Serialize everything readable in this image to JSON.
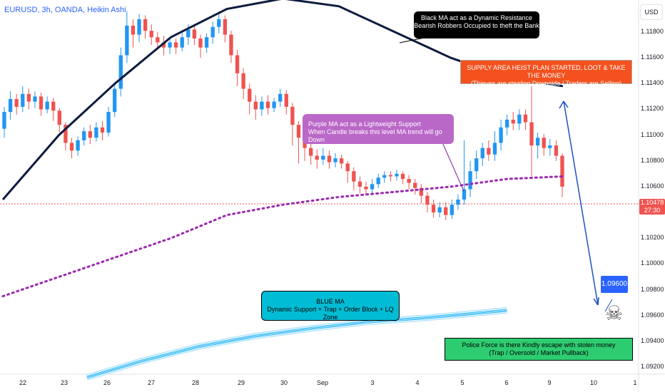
{
  "header": {
    "symbol": "EURUSD, 3h, OANDA, Heikin Ashi"
  },
  "currency_button": "USD",
  "current_price": {
    "value": "1.10478",
    "countdown": "27:30"
  },
  "annotations": {
    "black_ma": {
      "line1": "Black MA act as a Dynamic Resistance",
      "line2": "Bearish Robbers Occupied to theft the Bank"
    },
    "supply": {
      "line1": "SUPPLY AREA HEIST PLAN STARTED, LOOT & TAKE THE MONEY",
      "line2": "(Thieves are stealing Downside / Traders are Selling)"
    },
    "purple_ma": {
      "line1": "Purple MA act as a Lightweight Support",
      "line2": "When Candle breaks this level MA trend will go Down"
    },
    "blue_ma": {
      "line1": "BLUE MA",
      "line2": "Dynamic Support + Trap + Order Block + LQ Zone"
    },
    "police": {
      "line1": "Police Force is there Kindly escape with stolen money",
      "line2": "(Trap / Oversold / Market Pullback)"
    },
    "target": "1.09600"
  },
  "colors": {
    "bull": "#2196f3",
    "bear": "#ef5350",
    "black_ma": "#0d1b3e",
    "purple_ma": "#9c27b0",
    "blue_ma": "#29b6f6",
    "arrow": "#1e4fc2"
  },
  "chart_data": {
    "type": "candlestick",
    "y_axis_ticks": [
      "1.11800",
      "1.11600",
      "1.11400",
      "1.11200",
      "1.11000",
      "1.10800",
      "1.10600",
      "1.10400",
      "1.10200",
      "1.10000",
      "1.09800",
      "1.09600",
      "1.09400",
      "1.09200"
    ],
    "x_axis_ticks": [
      "22",
      "23",
      "26",
      "27",
      "28",
      "29",
      "30",
      "Sep",
      "3",
      "4",
      "5",
      "6",
      "9",
      "10",
      "1"
    ],
    "ylim": [
      1.0915,
      1.1205
    ],
    "x_range": [
      22.0,
      1.0
    ],
    "candles": [
      [
        1.1105,
        1.1118,
        1.1098,
        1.1122
      ],
      [
        1.1118,
        1.1128,
        1.1112,
        1.1134
      ],
      [
        1.1128,
        1.1122,
        1.1116,
        1.1132
      ],
      [
        1.1122,
        1.1132,
        1.1118,
        1.1138
      ],
      [
        1.1132,
        1.1126,
        1.112,
        1.1136
      ],
      [
        1.1126,
        1.113,
        1.1121,
        1.1134
      ],
      [
        1.113,
        1.112,
        1.1115,
        1.1133
      ],
      [
        1.112,
        1.1126,
        1.1117,
        1.113
      ],
      [
        1.1126,
        1.1119,
        1.1111,
        1.1129
      ],
      [
        1.1119,
        1.1108,
        1.1102,
        1.1121
      ],
      [
        1.1108,
        1.1094,
        1.1088,
        1.111
      ],
      [
        1.1094,
        1.1088,
        1.1082,
        1.1098
      ],
      [
        1.1088,
        1.1096,
        1.1084,
        1.1099
      ],
      [
        1.1096,
        1.1103,
        1.1092,
        1.1106
      ],
      [
        1.1103,
        1.1098,
        1.1093,
        1.1108
      ],
      [
        1.1098,
        1.1106,
        1.1095,
        1.111
      ],
      [
        1.1106,
        1.1102,
        1.1096,
        1.1111
      ],
      [
        1.1102,
        1.1118,
        1.1099,
        1.1122
      ],
      [
        1.1118,
        1.1136,
        1.1114,
        1.114
      ],
      [
        1.1136,
        1.1162,
        1.113,
        1.1168
      ],
      [
        1.1162,
        1.1185,
        1.1156,
        1.1196
      ],
      [
        1.1185,
        1.1178,
        1.1168,
        1.119
      ],
      [
        1.1178,
        1.119,
        1.1172,
        1.1194
      ],
      [
        1.119,
        1.1181,
        1.1175,
        1.1193
      ],
      [
        1.1181,
        1.1176,
        1.117,
        1.1186
      ],
      [
        1.1176,
        1.1172,
        1.1166,
        1.118
      ],
      [
        1.1172,
        1.1168,
        1.1162,
        1.1177
      ],
      [
        1.1168,
        1.1172,
        1.1163,
        1.1176
      ],
      [
        1.1172,
        1.1168,
        1.1163,
        1.1175
      ],
      [
        1.1168,
        1.1176,
        1.1165,
        1.118
      ],
      [
        1.1176,
        1.1182,
        1.117,
        1.1186
      ],
      [
        1.1182,
        1.1175,
        1.117,
        1.1186
      ],
      [
        1.1175,
        1.1168,
        1.116,
        1.1178
      ],
      [
        1.1168,
        1.1176,
        1.1164,
        1.1179
      ],
      [
        1.1176,
        1.1184,
        1.1171,
        1.1188
      ],
      [
        1.1184,
        1.119,
        1.1179,
        1.1196
      ],
      [
        1.119,
        1.1178,
        1.1172,
        1.1193
      ],
      [
        1.1178,
        1.1162,
        1.1156,
        1.1181
      ],
      [
        1.1162,
        1.1148,
        1.1138,
        1.1166
      ],
      [
        1.1148,
        1.1136,
        1.1128,
        1.1152
      ],
      [
        1.1136,
        1.1126,
        1.1116,
        1.114
      ],
      [
        1.1126,
        1.112,
        1.1112,
        1.1131
      ],
      [
        1.112,
        1.1126,
        1.1115,
        1.113
      ],
      [
        1.1126,
        1.1121,
        1.1116,
        1.1131
      ],
      [
        1.1121,
        1.1126,
        1.1118,
        1.1129
      ],
      [
        1.1126,
        1.1132,
        1.1122,
        1.1136
      ],
      [
        1.1132,
        1.1122,
        1.1116,
        1.1135
      ],
      [
        1.1122,
        1.1108,
        1.1092,
        1.1125
      ],
      [
        1.1108,
        1.1098,
        1.1078,
        1.1111
      ],
      [
        1.1098,
        1.109,
        1.108,
        1.1102
      ],
      [
        1.109,
        1.1084,
        1.1077,
        1.1094
      ],
      [
        1.1084,
        1.1081,
        1.1074,
        1.1089
      ],
      [
        1.1081,
        1.1084,
        1.1077,
        1.109
      ],
      [
        1.1084,
        1.1079,
        1.1074,
        1.1088
      ],
      [
        1.1079,
        1.1082,
        1.1075,
        1.1086
      ],
      [
        1.1082,
        1.1078,
        1.1074,
        1.1085
      ],
      [
        1.1078,
        1.1072,
        1.1063,
        1.108
      ],
      [
        1.1072,
        1.1064,
        1.1057,
        1.1075
      ],
      [
        1.1064,
        1.106,
        1.1055,
        1.1068
      ],
      [
        1.106,
        1.1058,
        1.1054,
        1.1064
      ],
      [
        1.1058,
        1.1062,
        1.1055,
        1.1066
      ],
      [
        1.1062,
        1.1067,
        1.1059,
        1.107
      ],
      [
        1.1067,
        1.1069,
        1.1063,
        1.1072
      ],
      [
        1.1069,
        1.1068,
        1.1064,
        1.1072
      ],
      [
        1.1068,
        1.107,
        1.1065,
        1.1073
      ],
      [
        1.107,
        1.1066,
        1.1062,
        1.1072
      ],
      [
        1.1066,
        1.1063,
        1.1058,
        1.1069
      ],
      [
        1.1063,
        1.1059,
        1.1054,
        1.1066
      ],
      [
        1.1059,
        1.1053,
        1.1047,
        1.1062
      ],
      [
        1.1053,
        1.1046,
        1.104,
        1.1056
      ],
      [
        1.1046,
        1.104,
        1.1036,
        1.105
      ],
      [
        1.104,
        1.1044,
        1.1036,
        1.1048
      ],
      [
        1.1044,
        1.1038,
        1.1034,
        1.1048
      ],
      [
        1.1038,
        1.1046,
        1.1035,
        1.105
      ],
      [
        1.1046,
        1.105,
        1.1042,
        1.1054
      ],
      [
        1.105,
        1.1058,
        1.1046,
        1.1096
      ],
      [
        1.1058,
        1.1072,
        1.1052,
        1.108
      ],
      [
        1.1072,
        1.1082,
        1.1066,
        1.1088
      ],
      [
        1.1082,
        1.109,
        1.1076,
        1.1094
      ],
      [
        1.109,
        1.1085,
        1.108,
        1.1096
      ],
      [
        1.1085,
        1.1094,
        1.108,
        1.1103
      ],
      [
        1.1094,
        1.1106,
        1.1088,
        1.1112
      ],
      [
        1.1106,
        1.1112,
        1.11,
        1.1116
      ],
      [
        1.1112,
        1.1109,
        1.1104,
        1.1118
      ],
      [
        1.1109,
        1.1116,
        1.1104,
        1.112
      ],
      [
        1.1116,
        1.111,
        1.1104,
        1.112
      ],
      [
        1.111,
        1.1092,
        1.1068,
        1.1138
      ],
      [
        1.1092,
        1.1098,
        1.1082,
        1.1102
      ],
      [
        1.1098,
        1.109,
        1.1084,
        1.1101
      ],
      [
        1.109,
        1.1092,
        1.1084,
        1.1097
      ],
      [
        1.1092,
        1.1084,
        1.108,
        1.1096
      ],
      [
        1.1084,
        1.106,
        1.1052,
        1.1086
      ]
    ],
    "series": [
      {
        "name": "Black MA",
        "points": [
          [
            0,
            1.105
          ],
          [
            0.1,
            1.11
          ],
          [
            0.2,
            1.114
          ],
          [
            0.3,
            1.1176
          ],
          [
            0.4,
            1.1198
          ],
          [
            0.5,
            1.1206
          ],
          [
            0.6,
            1.12
          ],
          [
            0.7,
            1.118
          ],
          [
            0.8,
            1.116
          ],
          [
            0.9,
            1.1145
          ],
          [
            1.0,
            1.1138
          ]
        ]
      },
      {
        "name": "Purple MA",
        "points": [
          [
            0,
            1.0975
          ],
          [
            0.1,
            1.099
          ],
          [
            0.2,
            1.1005
          ],
          [
            0.3,
            1.102
          ],
          [
            0.4,
            1.1038
          ],
          [
            0.5,
            1.1046
          ],
          [
            0.6,
            1.1052
          ],
          [
            0.7,
            1.1056
          ],
          [
            0.8,
            1.106
          ],
          [
            0.9,
            1.1066
          ],
          [
            1.0,
            1.1068
          ]
        ]
      },
      {
        "name": "Blue MA",
        "points": [
          [
            0.15,
            1.0912
          ],
          [
            0.25,
            1.0925
          ],
          [
            0.35,
            1.0936
          ],
          [
            0.45,
            1.0944
          ],
          [
            0.55,
            1.095
          ],
          [
            0.65,
            1.0955
          ],
          [
            0.75,
            1.0958
          ],
          [
            0.85,
            1.0962
          ],
          [
            0.9,
            1.0964
          ]
        ]
      }
    ]
  }
}
